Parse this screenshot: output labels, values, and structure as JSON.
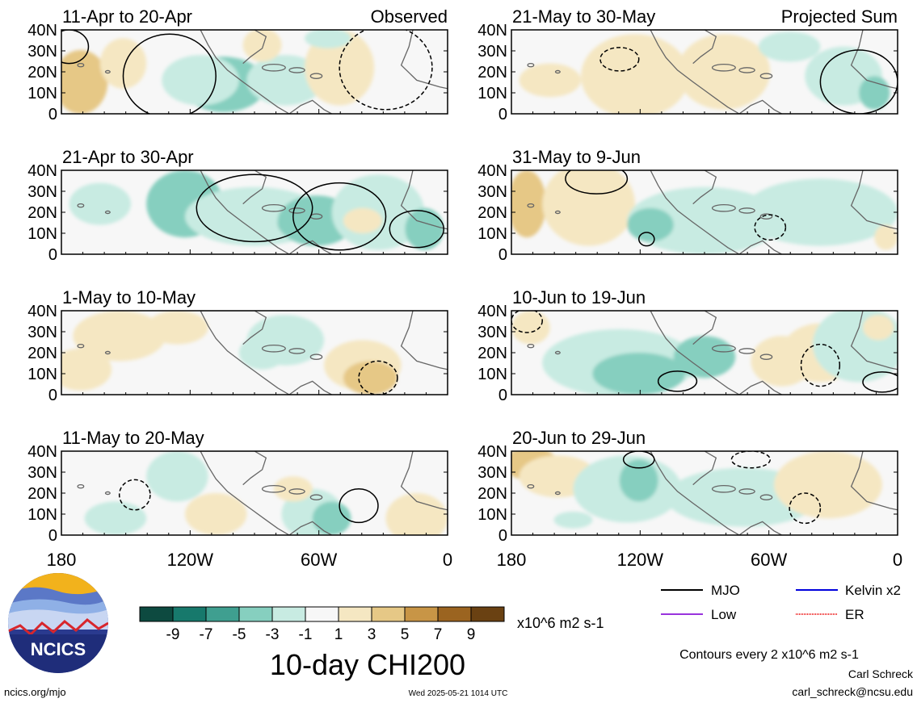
{
  "panels": [
    {
      "period": "11-Apr to 20-Apr",
      "tag": "Observed"
    },
    {
      "period": "21-May to 30-May",
      "tag": "Projected Sum"
    },
    {
      "period": "21-Apr to 30-Apr",
      "tag": ""
    },
    {
      "period": "31-May to 9-Jun",
      "tag": ""
    },
    {
      "period": "1-May to 10-May",
      "tag": ""
    },
    {
      "period": "10-Jun to 19-Jun",
      "tag": ""
    },
    {
      "period": "11-May to 20-May",
      "tag": ""
    },
    {
      "period": "20-Jun to 29-Jun",
      "tag": ""
    }
  ],
  "lat_ticks": [
    "40N",
    "30N",
    "20N",
    "10N",
    "0"
  ],
  "lon_ticks": [
    "180",
    "120W",
    "60W",
    "0"
  ],
  "colorbar": {
    "ticks": [
      "-9",
      "-7",
      "-5",
      "-3",
      "-1",
      "1",
      "3",
      "5",
      "7",
      "9"
    ],
    "units": "x10^6 m2 s-1",
    "colors": [
      "#0d4a40",
      "#17796c",
      "#3f9f90",
      "#86cfbf",
      "#c8ebe2",
      "#f7f7f7",
      "#f5e7c2",
      "#e6c886",
      "#c89546",
      "#9b6420",
      "#6a4112"
    ]
  },
  "title": "10-day CHI200",
  "legend": {
    "items": [
      {
        "label": "MJO",
        "color": "#000000"
      },
      {
        "label": "Kelvin x2",
        "color": "#0000dd"
      },
      {
        "label": "Low",
        "color": "#9933dd"
      },
      {
        "label": "ER",
        "color": "#ee2222"
      }
    ],
    "contour_note": "Contours every 2 x10^6 m2 s-1"
  },
  "logo_text": "NCICS",
  "footer": {
    "url": "ncics.org/mjo",
    "timestamp": "Wed 2025-05-21 1014 UTC",
    "author": "Carl Schreck",
    "email": "carl_schreck@ncsu.edu"
  }
}
